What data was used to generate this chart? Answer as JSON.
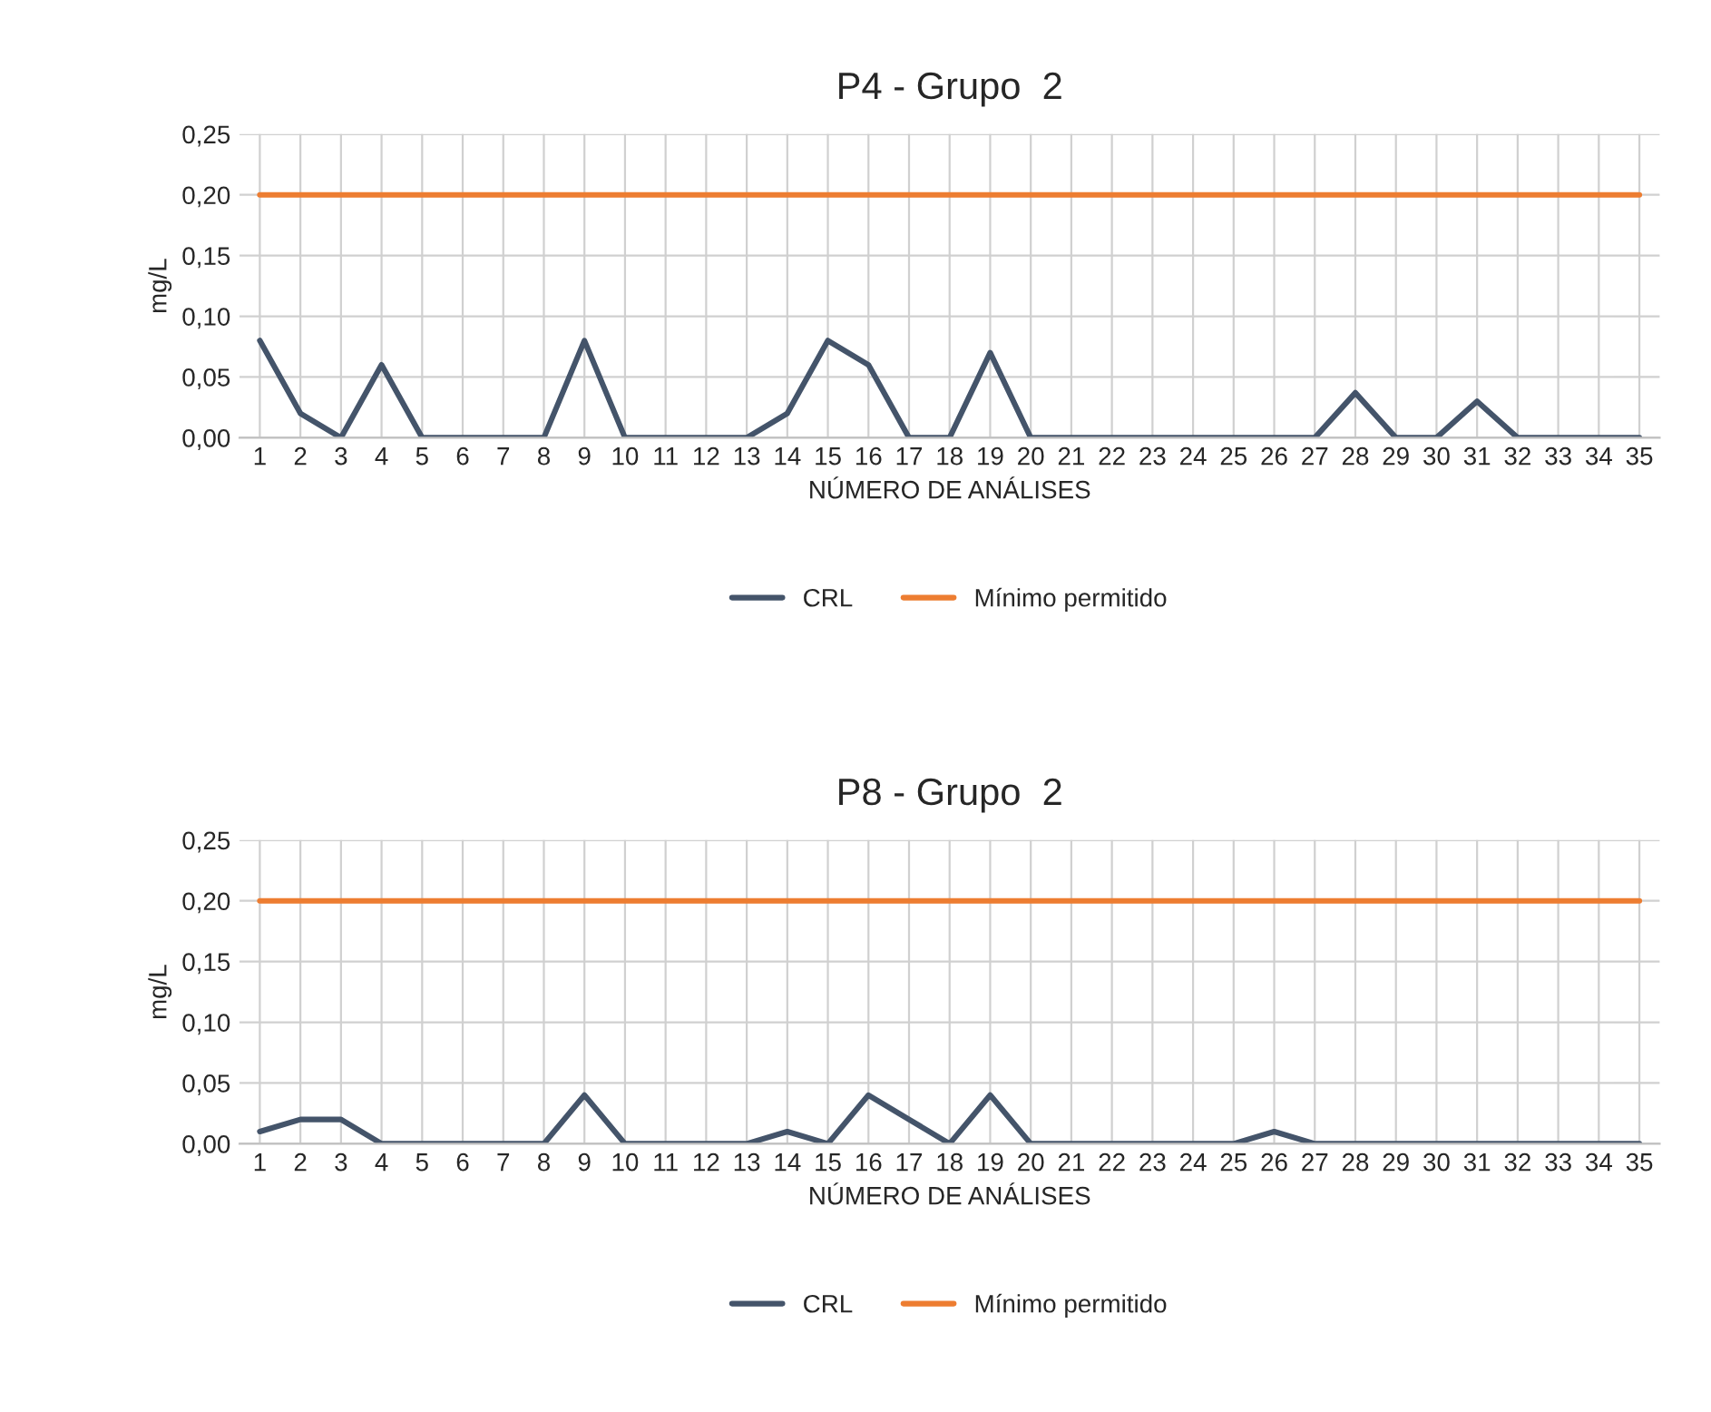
{
  "chart_data": [
    {
      "type": "line",
      "title": "P4 - Grupo  2",
      "xlabel": "NÚMERO DE ANÁLISES",
      "ylabel": "mg/L",
      "categories": [
        "1",
        "2",
        "3",
        "4",
        "5",
        "6",
        "7",
        "8",
        "9",
        "10",
        "11",
        "12",
        "13",
        "14",
        "15",
        "16",
        "17",
        "18",
        "19",
        "20",
        "21",
        "22",
        "23",
        "24",
        "25",
        "26",
        "27",
        "28",
        "29",
        "30",
        "31",
        "32",
        "33",
        "34",
        "35"
      ],
      "series": [
        {
          "name": "CRL",
          "color": "#44546a",
          "values": [
            0.08,
            0.02,
            0,
            0.06,
            0,
            0,
            0,
            0,
            0.08,
            0,
            0,
            0,
            0,
            0.02,
            0.08,
            0.06,
            0,
            0,
            0.07,
            0,
            0,
            0,
            0,
            0,
            0,
            0,
            0,
            0.037,
            0,
            0,
            0.03,
            0,
            0,
            0,
            0
          ]
        },
        {
          "name": "Mínimo permitido",
          "color": "#ed7d31",
          "values": [
            0.2,
            0.2,
            0.2,
            0.2,
            0.2,
            0.2,
            0.2,
            0.2,
            0.2,
            0.2,
            0.2,
            0.2,
            0.2,
            0.2,
            0.2,
            0.2,
            0.2,
            0.2,
            0.2,
            0.2,
            0.2,
            0.2,
            0.2,
            0.2,
            0.2,
            0.2,
            0.2,
            0.2,
            0.2,
            0.2,
            0.2,
            0.2,
            0.2,
            0.2,
            0.2
          ]
        }
      ],
      "ylim": [
        0,
        0.25
      ],
      "yticks": [
        {
          "value": 0,
          "label": "0,00"
        },
        {
          "value": 0.05,
          "label": "0,05"
        },
        {
          "value": 0.1,
          "label": "0,10"
        },
        {
          "value": 0.15,
          "label": "0,15"
        },
        {
          "value": 0.2,
          "label": "0,20"
        },
        {
          "value": 0.25,
          "label": "0,25"
        }
      ],
      "grid": true,
      "legend": "bottom",
      "marker": "none",
      "line_style": "solid"
    },
    {
      "type": "line",
      "title": "P8 - Grupo  2",
      "xlabel": "NÚMERO DE ANÁLISES",
      "ylabel": "mg/L",
      "categories": [
        "1",
        "2",
        "3",
        "4",
        "5",
        "6",
        "7",
        "8",
        "9",
        "10",
        "11",
        "12",
        "13",
        "14",
        "15",
        "16",
        "17",
        "18",
        "19",
        "20",
        "21",
        "22",
        "23",
        "24",
        "25",
        "26",
        "27",
        "28",
        "29",
        "30",
        "31",
        "32",
        "33",
        "34",
        "35"
      ],
      "series": [
        {
          "name": "CRL",
          "color": "#44546a",
          "values": [
            0.01,
            0.02,
            0.02,
            0,
            0,
            0,
            0,
            0,
            0.04,
            0,
            0,
            0,
            0,
            0.01,
            0,
            0.04,
            0.02,
            0,
            0.04,
            0,
            0,
            0,
            0,
            0,
            0,
            0.01,
            0,
            0,
            0,
            0,
            0,
            0,
            0,
            0,
            0
          ]
        },
        {
          "name": "Mínimo permitido",
          "color": "#ed7d31",
          "values": [
            0.2,
            0.2,
            0.2,
            0.2,
            0.2,
            0.2,
            0.2,
            0.2,
            0.2,
            0.2,
            0.2,
            0.2,
            0.2,
            0.2,
            0.2,
            0.2,
            0.2,
            0.2,
            0.2,
            0.2,
            0.2,
            0.2,
            0.2,
            0.2,
            0.2,
            0.2,
            0.2,
            0.2,
            0.2,
            0.2,
            0.2,
            0.2,
            0.2,
            0.2,
            0.2
          ]
        }
      ],
      "ylim": [
        0,
        0.25
      ],
      "yticks": [
        {
          "value": 0,
          "label": "0,00"
        },
        {
          "value": 0.05,
          "label": "0,05"
        },
        {
          "value": 0.1,
          "label": "0,10"
        },
        {
          "value": 0.15,
          "label": "0,15"
        },
        {
          "value": 0.2,
          "label": "0,20"
        },
        {
          "value": 0.25,
          "label": "0,25"
        }
      ],
      "grid": true,
      "legend": "bottom",
      "marker": "none",
      "line_style": "solid"
    }
  ]
}
